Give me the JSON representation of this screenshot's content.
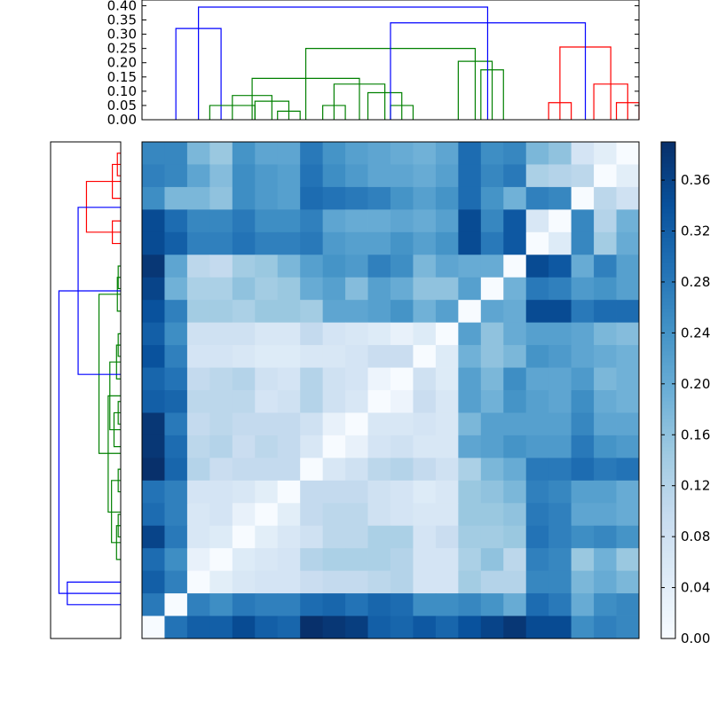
{
  "chart_data": [
    {
      "type": "dendrogram",
      "orientation": "top",
      "ylim": [
        0,
        0.42
      ],
      "yticks": [
        "0.00",
        "0.05",
        "0.10",
        "0.15",
        "0.20",
        "0.25",
        "0.30",
        "0.35",
        "0.40"
      ],
      "links": [
        {
          "left": 1.5,
          "right": 3.5,
          "height": 0.32,
          "color": "#0000ff"
        },
        {
          "left": 3,
          "right": 5,
          "height": 0.05,
          "color": "#008000"
        },
        {
          "left": 6,
          "right": 7,
          "height": 0.03,
          "color": "#008000"
        },
        {
          "left": 5,
          "right": 6.5,
          "height": 0.065,
          "color": "#008000"
        },
        {
          "left": 4,
          "right": 5.75,
          "height": 0.085,
          "color": "#008000"
        },
        {
          "left": 8,
          "right": 9,
          "height": 0.05,
          "color": "#008000"
        },
        {
          "left": 11,
          "right": 12,
          "height": 0.05,
          "color": "#008000"
        },
        {
          "left": 10,
          "right": 11.5,
          "height": 0.095,
          "color": "#008000"
        },
        {
          "left": 8.5,
          "right": 10.75,
          "height": 0.125,
          "color": "#008000"
        },
        {
          "left": 4.875,
          "right": 9.625,
          "height": 0.145,
          "color": "#008000"
        },
        {
          "left": 15,
          "right": 16,
          "height": 0.175,
          "color": "#008000"
        },
        {
          "left": 14,
          "right": 15.5,
          "height": 0.205,
          "color": "#008000"
        },
        {
          "left": 7.25,
          "right": 14.75,
          "height": 0.25,
          "color": "#008000"
        },
        {
          "left": 18,
          "right": 19,
          "height": 0.06,
          "color": "#ff0000"
        },
        {
          "left": 21,
          "right": 22,
          "height": 0.06,
          "color": "#ff0000"
        },
        {
          "left": 20,
          "right": 21.5,
          "height": 0.125,
          "color": "#ff0000"
        },
        {
          "left": 18.5,
          "right": 20.75,
          "height": 0.255,
          "color": "#ff0000"
        },
        {
          "left": 11,
          "right": 19.625,
          "height": 0.34,
          "color": "#0000ff"
        },
        {
          "left": 2.5,
          "right": 15.3,
          "height": 0.395,
          "color": "#0000ff"
        }
      ]
    },
    {
      "type": "dendrogram",
      "orientation": "left",
      "xlim": [
        0,
        0.42
      ],
      "links": [
        {
          "a": 0.5,
          "b": 1.5,
          "height": 0.02,
          "color": "#ff0000"
        },
        {
          "a": 1,
          "b": 2.5,
          "height": 0.05,
          "color": "#ff0000"
        },
        {
          "a": 3.5,
          "b": 4.5,
          "height": 0.05,
          "color": "#ff0000"
        },
        {
          "a": 1.75,
          "b": 4,
          "height": 0.205,
          "color": "#ff0000"
        },
        {
          "a": 5.5,
          "b": 6.5,
          "height": 0.015,
          "color": "#008000"
        },
        {
          "a": 6,
          "b": 7.5,
          "height": 0.02,
          "color": "#008000"
        },
        {
          "a": 8.5,
          "b": 9.5,
          "height": 0.015,
          "color": "#008000"
        },
        {
          "a": 9,
          "b": 10.5,
          "height": 0.025,
          "color": "#008000"
        },
        {
          "a": 11.5,
          "b": 12.5,
          "height": 0.015,
          "color": "#008000"
        },
        {
          "a": 12,
          "b": 13.5,
          "height": 0.04,
          "color": "#008000"
        },
        {
          "a": 9.75,
          "b": 12.75,
          "height": 0.065,
          "color": "#008000"
        },
        {
          "a": 14.5,
          "b": 15.5,
          "height": 0.015,
          "color": "#008000"
        },
        {
          "a": 16.5,
          "b": 17.5,
          "height": 0.015,
          "color": "#008000"
        },
        {
          "a": 17,
          "b": 18.5,
          "height": 0.025,
          "color": "#008000"
        },
        {
          "a": 15,
          "b": 17.75,
          "height": 0.055,
          "color": "#008000"
        },
        {
          "a": 11.25,
          "b": 16.4,
          "height": 0.075,
          "color": "#008000"
        },
        {
          "a": 6.75,
          "b": 13.8,
          "height": 0.13,
          "color": "#008000"
        },
        {
          "a": 2.9,
          "b": 10.3,
          "height": 0.255,
          "color": "#0000ff"
        },
        {
          "a": 19.5,
          "b": 20.5,
          "height": 0.32,
          "color": "#0000ff"
        },
        {
          "a": 6.6,
          "b": 20,
          "height": 0.37,
          "color": "#0000ff"
        }
      ]
    },
    {
      "type": "heatmap",
      "rows": 22,
      "cols": 22,
      "colormap": "Blues",
      "vmin": 0,
      "vmax": 0.39,
      "values": [
        [
          0.26,
          0.26,
          0.18,
          0.15,
          0.24,
          0.21,
          0.21,
          0.28,
          0.24,
          0.22,
          0.21,
          0.2,
          0.19,
          0.21,
          0.3,
          0.25,
          0.26,
          0.18,
          0.16,
          0.07,
          0.04,
          0.0
        ],
        [
          0.27,
          0.26,
          0.21,
          0.17,
          0.25,
          0.23,
          0.22,
          0.29,
          0.25,
          0.23,
          0.21,
          0.21,
          0.2,
          0.22,
          0.3,
          0.26,
          0.28,
          0.13,
          0.12,
          0.11,
          0.0,
          0.04
        ],
        [
          0.25,
          0.18,
          0.18,
          0.16,
          0.25,
          0.23,
          0.22,
          0.3,
          0.29,
          0.28,
          0.27,
          0.24,
          0.22,
          0.24,
          0.3,
          0.24,
          0.19,
          0.27,
          0.26,
          0.0,
          0.11,
          0.08
        ],
        [
          0.35,
          0.3,
          0.26,
          0.26,
          0.28,
          0.25,
          0.25,
          0.27,
          0.21,
          0.2,
          0.2,
          0.21,
          0.2,
          0.22,
          0.35,
          0.26,
          0.33,
          0.06,
          0.0,
          0.26,
          0.12,
          0.19
        ],
        [
          0.35,
          0.32,
          0.27,
          0.27,
          0.29,
          0.27,
          0.27,
          0.28,
          0.23,
          0.22,
          0.22,
          0.24,
          0.22,
          0.24,
          0.35,
          0.28,
          0.33,
          0.0,
          0.05,
          0.26,
          0.14,
          0.2
        ],
        [
          0.38,
          0.21,
          0.11,
          0.1,
          0.14,
          0.15,
          0.18,
          0.22,
          0.24,
          0.23,
          0.27,
          0.25,
          0.18,
          0.21,
          0.2,
          0.2,
          0.0,
          0.35,
          0.33,
          0.2,
          0.27,
          0.22
        ],
        [
          0.36,
          0.19,
          0.13,
          0.13,
          0.16,
          0.14,
          0.15,
          0.2,
          0.22,
          0.17,
          0.22,
          0.2,
          0.16,
          0.16,
          0.22,
          0.0,
          0.19,
          0.28,
          0.27,
          0.23,
          0.24,
          0.22
        ],
        [
          0.34,
          0.27,
          0.14,
          0.14,
          0.13,
          0.15,
          0.15,
          0.14,
          0.21,
          0.21,
          0.22,
          0.24,
          0.19,
          0.22,
          0.0,
          0.21,
          0.2,
          0.35,
          0.35,
          0.28,
          0.3,
          0.3
        ],
        [
          0.32,
          0.25,
          0.08,
          0.08,
          0.08,
          0.06,
          0.06,
          0.1,
          0.07,
          0.06,
          0.05,
          0.03,
          0.05,
          0.0,
          0.22,
          0.16,
          0.2,
          0.22,
          0.22,
          0.21,
          0.18,
          0.17
        ],
        [
          0.34,
          0.27,
          0.07,
          0.07,
          0.06,
          0.05,
          0.05,
          0.06,
          0.06,
          0.07,
          0.09,
          0.09,
          0.0,
          0.05,
          0.19,
          0.16,
          0.18,
          0.24,
          0.23,
          0.21,
          0.2,
          0.19
        ],
        [
          0.31,
          0.29,
          0.1,
          0.11,
          0.12,
          0.08,
          0.07,
          0.12,
          0.08,
          0.07,
          0.02,
          0.0,
          0.08,
          0.05,
          0.22,
          0.18,
          0.25,
          0.21,
          0.21,
          0.23,
          0.18,
          0.19
        ],
        [
          0.32,
          0.31,
          0.11,
          0.11,
          0.11,
          0.07,
          0.08,
          0.12,
          0.08,
          0.06,
          0.0,
          0.02,
          0.09,
          0.06,
          0.22,
          0.19,
          0.24,
          0.22,
          0.21,
          0.25,
          0.2,
          0.19
        ],
        [
          0.38,
          0.28,
          0.1,
          0.11,
          0.1,
          0.1,
          0.1,
          0.08,
          0.03,
          0.0,
          0.06,
          0.06,
          0.07,
          0.06,
          0.18,
          0.22,
          0.22,
          0.22,
          0.22,
          0.26,
          0.21,
          0.21
        ],
        [
          0.38,
          0.3,
          0.11,
          0.12,
          0.09,
          0.11,
          0.1,
          0.06,
          0.0,
          0.03,
          0.07,
          0.08,
          0.06,
          0.06,
          0.21,
          0.22,
          0.24,
          0.23,
          0.23,
          0.28,
          0.24,
          0.23
        ],
        [
          0.39,
          0.31,
          0.12,
          0.09,
          0.1,
          0.1,
          0.1,
          0.0,
          0.06,
          0.08,
          0.11,
          0.12,
          0.1,
          0.08,
          0.13,
          0.18,
          0.2,
          0.28,
          0.28,
          0.3,
          0.28,
          0.29
        ],
        [
          0.29,
          0.27,
          0.07,
          0.07,
          0.06,
          0.04,
          0.0,
          0.1,
          0.1,
          0.1,
          0.08,
          0.07,
          0.05,
          0.06,
          0.15,
          0.16,
          0.18,
          0.27,
          0.26,
          0.22,
          0.22,
          0.2
        ],
        [
          0.3,
          0.27,
          0.06,
          0.07,
          0.03,
          0.0,
          0.04,
          0.1,
          0.11,
          0.11,
          0.08,
          0.07,
          0.06,
          0.06,
          0.15,
          0.15,
          0.16,
          0.28,
          0.27,
          0.21,
          0.21,
          0.2
        ],
        [
          0.36,
          0.28,
          0.06,
          0.05,
          0.0,
          0.04,
          0.06,
          0.08,
          0.11,
          0.11,
          0.13,
          0.13,
          0.07,
          0.09,
          0.14,
          0.14,
          0.15,
          0.29,
          0.27,
          0.25,
          0.26,
          0.24
        ],
        [
          0.3,
          0.25,
          0.03,
          0.0,
          0.05,
          0.06,
          0.07,
          0.12,
          0.13,
          0.13,
          0.13,
          0.12,
          0.07,
          0.07,
          0.13,
          0.16,
          0.11,
          0.27,
          0.26,
          0.15,
          0.19,
          0.15
        ],
        [
          0.32,
          0.27,
          0.0,
          0.04,
          0.06,
          0.07,
          0.07,
          0.09,
          0.1,
          0.1,
          0.11,
          0.12,
          0.07,
          0.07,
          0.14,
          0.12,
          0.12,
          0.26,
          0.26,
          0.18,
          0.2,
          0.18
        ],
        [
          0.28,
          0.0,
          0.27,
          0.25,
          0.28,
          0.27,
          0.27,
          0.3,
          0.31,
          0.29,
          0.31,
          0.3,
          0.25,
          0.25,
          0.26,
          0.24,
          0.2,
          0.3,
          0.28,
          0.2,
          0.25,
          0.26
        ],
        [
          0.0,
          0.29,
          0.32,
          0.32,
          0.35,
          0.32,
          0.31,
          0.39,
          0.38,
          0.37,
          0.32,
          0.31,
          0.33,
          0.31,
          0.34,
          0.36,
          0.38,
          0.35,
          0.35,
          0.25,
          0.27,
          0.26
        ]
      ]
    },
    {
      "type": "colorbar",
      "vmin": 0,
      "vmax": 0.39,
      "ticks": [
        "0.00",
        "0.04",
        "0.08",
        "0.12",
        "0.16",
        "0.20",
        "0.24",
        "0.28",
        "0.32",
        "0.36"
      ]
    }
  ]
}
